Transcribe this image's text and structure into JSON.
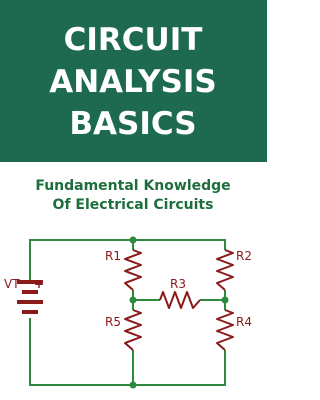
{
  "title": {
    "lines": [
      "CIRCUIT",
      "ANALYSIS",
      "BASICS"
    ]
  },
  "subtitle": {
    "lines": [
      "Fundamental Knowledge",
      "Of Electrical Circuits"
    ]
  },
  "diagram": {
    "labels": {
      "source": "VT",
      "plus": "+",
      "r1": "R1",
      "r2": "R2",
      "r3": "R3",
      "r4": "R4",
      "r5": "R5"
    }
  }
}
